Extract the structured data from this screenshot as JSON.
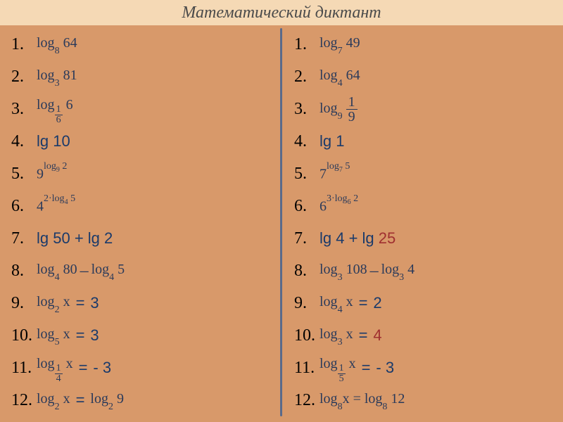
{
  "title": "Математический диктант",
  "colors": {
    "headerBg": "#f5d9b5",
    "bodyBg": "#d8996a",
    "divider": "#5a6a8a",
    "mathText": "#2a3a5a",
    "accent": "#1a3a6a",
    "red": "#a03030"
  },
  "left": {
    "items": [
      {
        "n": "1.",
        "type": "log",
        "base": "8",
        "arg": "64"
      },
      {
        "n": "2.",
        "type": "log",
        "base": "3",
        "arg": "81"
      },
      {
        "n": "3.",
        "type": "logfrac",
        "baseN": "1",
        "baseD": "6",
        "arg": "6"
      },
      {
        "n": "4.",
        "type": "text",
        "accent": "lg 10"
      },
      {
        "n": "5.",
        "type": "pow",
        "base": "9",
        "expPrefix": "log",
        "expBase": "9",
        "expArg": "2"
      },
      {
        "n": "6.",
        "type": "pow",
        "base": "4",
        "expPrefix": "2·log",
        "expBase": "4",
        "expArg": "5"
      },
      {
        "n": "7.",
        "type": "text",
        "accent": "lg 50 + lg 2"
      },
      {
        "n": "8.",
        "type": "logdiff",
        "b1": "4",
        "a1": "80",
        "b2": "4",
        "a2": "5"
      },
      {
        "n": "9.",
        "type": "logeq",
        "base": "2",
        "arg": "x",
        "rhs": "3"
      },
      {
        "n": "10.",
        "type": "logeq",
        "base": "5",
        "arg": "x",
        "rhs": "3"
      },
      {
        "n": "11.",
        "type": "logfraceq",
        "baseN": "1",
        "baseD": "4",
        "arg": "x",
        "rhs": "- 3"
      },
      {
        "n": "12.",
        "type": "logeqlog",
        "base1": "2",
        "arg1": "x",
        "base2": "2",
        "arg2": "9"
      }
    ]
  },
  "right": {
    "items": [
      {
        "n": "1.",
        "type": "log",
        "base": "7",
        "arg": "49"
      },
      {
        "n": "2.",
        "type": "log",
        "base": "4",
        "arg": "64"
      },
      {
        "n": "3.",
        "type": "logbigfrac",
        "base": "9",
        "argN": "1",
        "argD": "9"
      },
      {
        "n": "4.",
        "type": "text",
        "accent": "lg 1"
      },
      {
        "n": "5.",
        "type": "pow",
        "base": "7",
        "expPrefix": "log",
        "expBase": "7",
        "expArg": "5"
      },
      {
        "n": "6.",
        "type": "pow",
        "base": "6",
        "expPrefix": "3·log",
        "expBase": "6",
        "expArg": "2"
      },
      {
        "n": "7.",
        "type": "textmixed",
        "p1": "lg 4 + lg ",
        "red": "25"
      },
      {
        "n": "8.",
        "type": "logdiff",
        "b1": "3",
        "a1": "108",
        "b2": "3",
        "a2": "4"
      },
      {
        "n": "9.",
        "type": "logeq",
        "base": "4",
        "arg": "x",
        "rhs": "2"
      },
      {
        "n": "10.",
        "type": "logeq",
        "base": "3",
        "arg": "x",
        "rhs": "4",
        "rhsRed": true
      },
      {
        "n": "11.",
        "type": "logfraceq",
        "baseN": "1",
        "baseD": "5",
        "arg": "x",
        "eqText": "=",
        "rhs": "- 3"
      },
      {
        "n": "12.",
        "type": "logeqlogfull",
        "base1": "8",
        "arg1": "x",
        "base2": "8",
        "arg2": "12"
      }
    ]
  }
}
